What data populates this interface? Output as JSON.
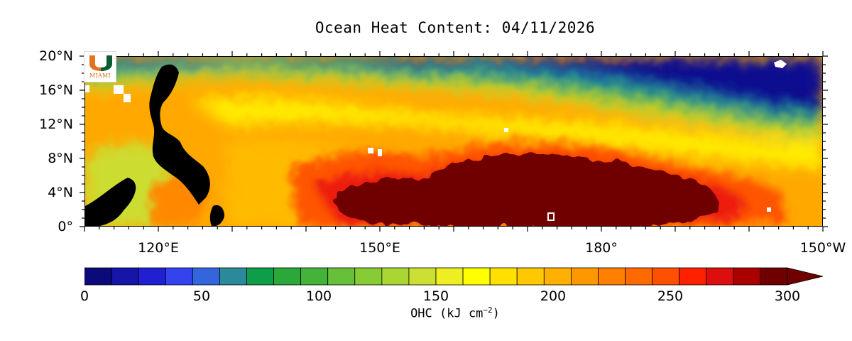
{
  "title": "Ocean Heat Content: 04/11/2026",
  "logo": {
    "wordmark": "MIAMI",
    "colors": {
      "orange": "#e0741f",
      "green": "#0a5c36"
    }
  },
  "map": {
    "lat_labels": [
      "20°N",
      "16°N",
      "12°N",
      "8°N",
      "4°N",
      "0°"
    ],
    "lon_labels": [
      "120°E",
      "150°E",
      "180°",
      "150°W"
    ],
    "lat_range": [
      0,
      20
    ],
    "lon_range": [
      110,
      210
    ],
    "land_color": "#000000",
    "no_data_color": "#ffffff"
  },
  "colorbar": {
    "title_main": "OHC (kJ cm",
    "title_exp": "−2",
    "title_close": ")",
    "tick_labels": [
      "0",
      "50",
      "100",
      "150",
      "200",
      "250",
      "300"
    ],
    "range": [
      0,
      300
    ],
    "extend": "max",
    "colors": [
      "#0a0a7a",
      "#1515a8",
      "#2020d2",
      "#3344ee",
      "#3366dd",
      "#2a8a99",
      "#0e9e4a",
      "#2aa83a",
      "#44b33a",
      "#66c03a",
      "#88cc33",
      "#aad633",
      "#cce033",
      "#eeee22",
      "#ffff00",
      "#ffe000",
      "#ffc800",
      "#ffb000",
      "#ff9800",
      "#ff8000",
      "#ff6a00",
      "#ff5000",
      "#ff2000",
      "#dd0e0e",
      "#aa0000",
      "#700000"
    ]
  }
}
